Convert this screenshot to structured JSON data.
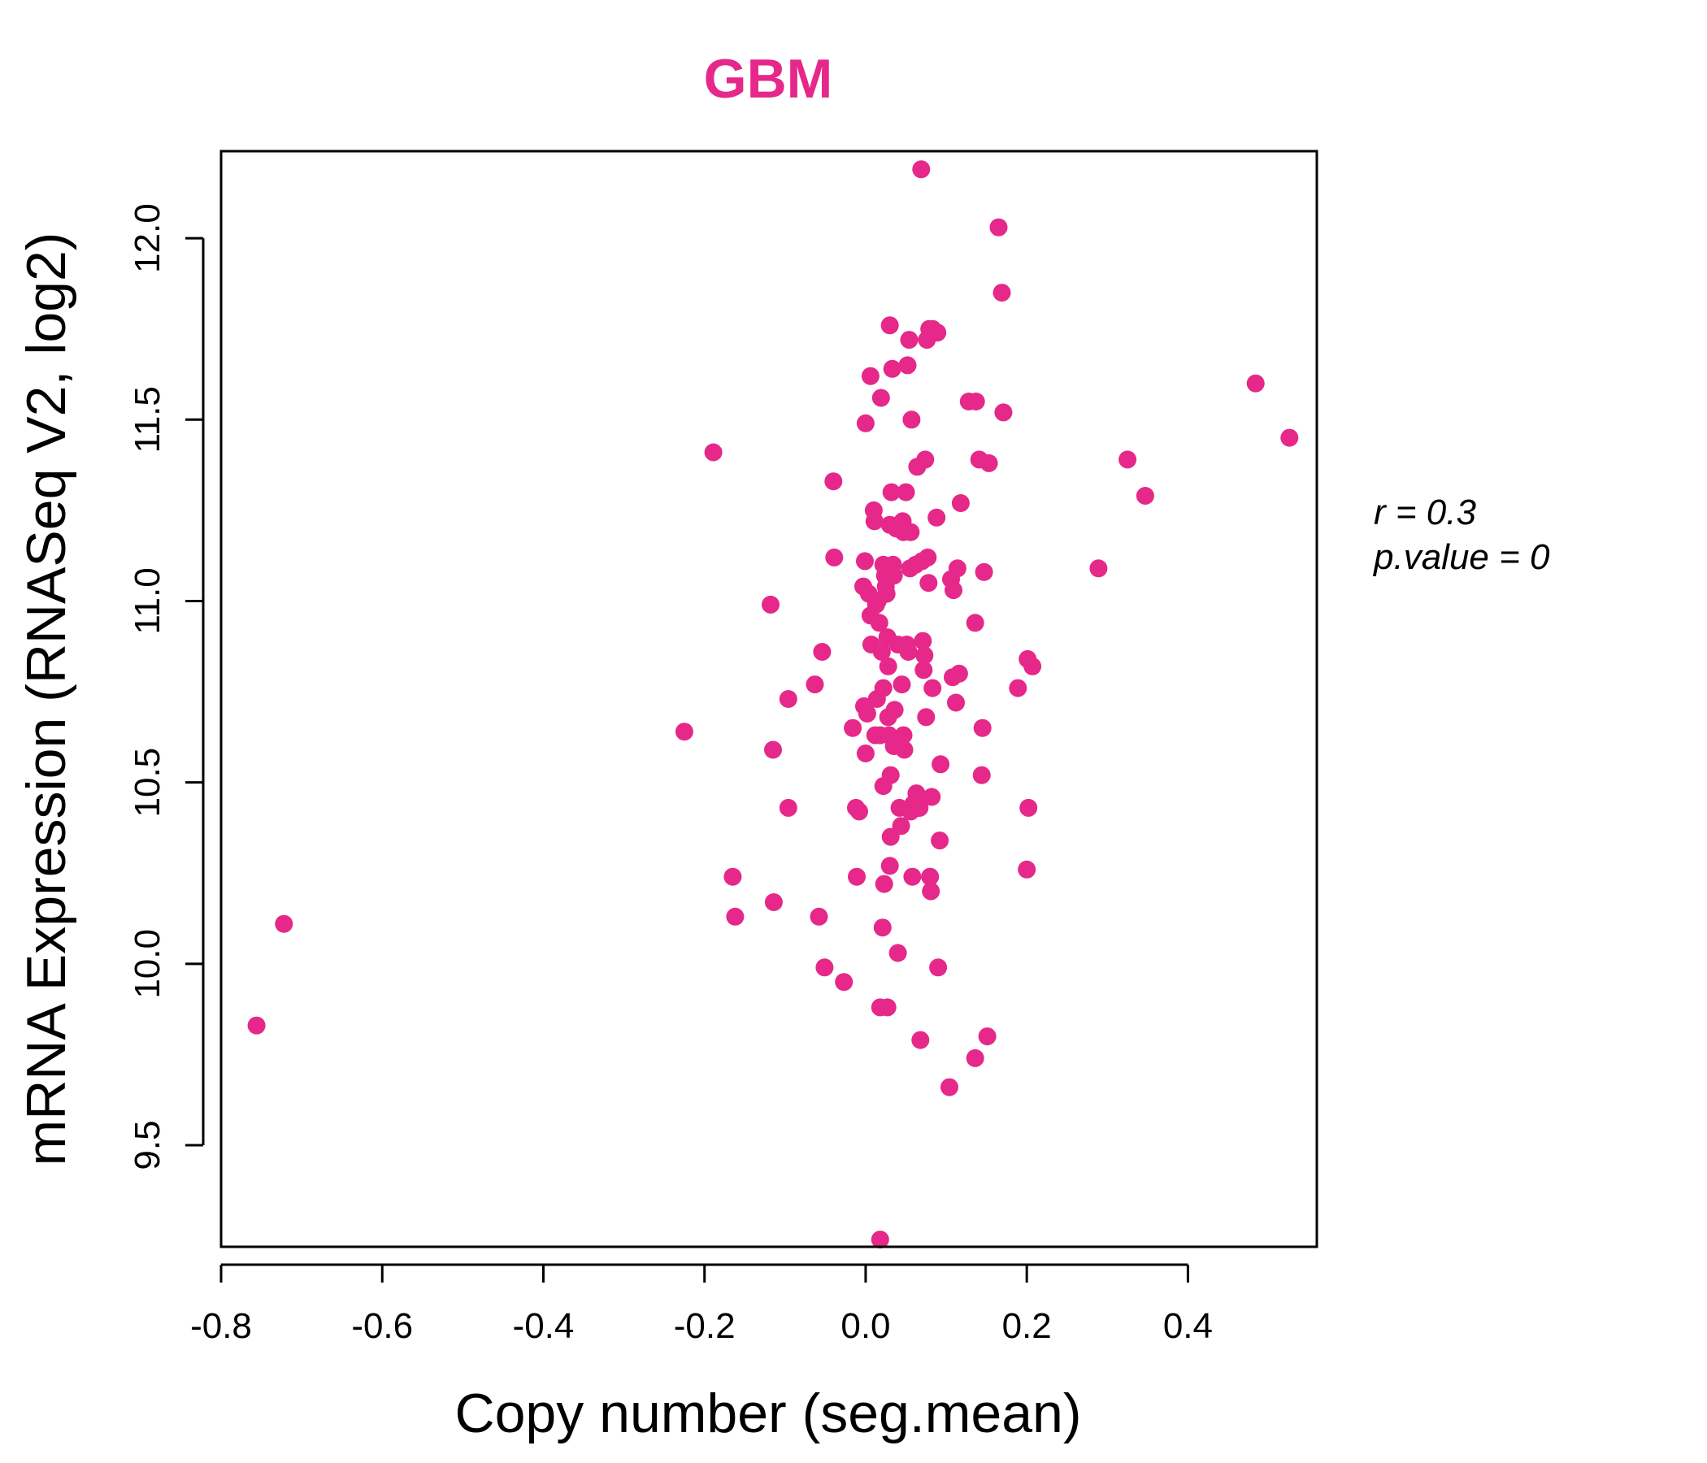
{
  "colors": {
    "points": "#e5288a",
    "title": "#e5288a",
    "axis": "#000000"
  },
  "chart_data": {
    "type": "scatter",
    "title": "GBM",
    "xlabel": "Copy number (seg.mean)",
    "ylabel": "mRNA Expression (RNASeq V2, log2)",
    "xlim": [
      -0.8,
      0.56
    ],
    "ylim": [
      9.22,
      12.24
    ],
    "xticks": [
      -0.8,
      -0.6,
      -0.4,
      -0.2,
      0.0,
      0.2,
      0.4
    ],
    "xtick_labels": [
      "-0.8",
      "-0.6",
      "-0.4",
      "-0.2",
      "0.0",
      "0.2",
      "0.4"
    ],
    "yticks": [
      9.5,
      10.0,
      10.5,
      11.0,
      11.5,
      12.0
    ],
    "ytick_labels": [
      "9.5",
      "10.0",
      "10.5",
      "11.0",
      "11.5",
      "12.0"
    ],
    "annotations": {
      "r": "r = 0.3",
      "p": "p.value = 0"
    },
    "points": [
      [
        -0.756,
        9.83
      ],
      [
        -0.722,
        10.11
      ],
      [
        -0.225,
        10.64
      ],
      [
        -0.189,
        11.41
      ],
      [
        -0.165,
        10.24
      ],
      [
        -0.162,
        10.13
      ],
      [
        -0.118,
        10.99
      ],
      [
        -0.115,
        10.59
      ],
      [
        -0.114,
        10.17
      ],
      [
        -0.096,
        10.73
      ],
      [
        -0.096,
        10.43
      ],
      [
        -0.063,
        10.77
      ],
      [
        -0.058,
        10.13
      ],
      [
        -0.054,
        10.86
      ],
      [
        -0.051,
        9.99
      ],
      [
        -0.04,
        11.33
      ],
      [
        -0.039,
        11.12
      ],
      [
        -0.027,
        9.95
      ],
      [
        -0.016,
        10.65
      ],
      [
        -0.012,
        10.43
      ],
      [
        -0.011,
        10.24
      ],
      [
        -0.008,
        10.42
      ],
      [
        -0.003,
        11.04
      ],
      [
        -0.002,
        10.71
      ],
      [
        -0.001,
        11.11
      ],
      [
        0.0,
        11.49
      ],
      [
        0.0,
        10.58
      ],
      [
        0.002,
        10.69
      ],
      [
        0.004,
        11.02
      ],
      [
        0.006,
        11.62
      ],
      [
        0.006,
        10.96
      ],
      [
        0.007,
        10.88
      ],
      [
        0.01,
        11.25
      ],
      [
        0.011,
        11.22
      ],
      [
        0.012,
        10.63
      ],
      [
        0.013,
        10.99
      ],
      [
        0.014,
        10.73
      ],
      [
        0.015,
        11.0
      ],
      [
        0.017,
        10.94
      ],
      [
        0.018,
        10.63
      ],
      [
        0.018,
        9.88
      ],
      [
        0.018,
        9.24
      ],
      [
        0.019,
        11.56
      ],
      [
        0.02,
        10.86
      ],
      [
        0.021,
        10.1
      ],
      [
        0.022,
        10.76
      ],
      [
        0.022,
        10.49
      ],
      [
        0.022,
        11.1
      ],
      [
        0.023,
        10.22
      ],
      [
        0.024,
        11.07
      ],
      [
        0.025,
        11.04
      ],
      [
        0.026,
        11.02
      ],
      [
        0.027,
        10.9
      ],
      [
        0.027,
        9.88
      ],
      [
        0.028,
        10.82
      ],
      [
        0.028,
        10.68
      ],
      [
        0.029,
        10.63
      ],
      [
        0.03,
        11.21
      ],
      [
        0.03,
        10.27
      ],
      [
        0.03,
        11.76
      ],
      [
        0.031,
        10.35
      ],
      [
        0.031,
        10.52
      ],
      [
        0.032,
        11.3
      ],
      [
        0.033,
        11.64
      ],
      [
        0.034,
        11.1
      ],
      [
        0.035,
        10.6
      ],
      [
        0.035,
        11.07
      ],
      [
        0.036,
        10.7
      ],
      [
        0.038,
        11.2
      ],
      [
        0.04,
        10.88
      ],
      [
        0.04,
        10.03
      ],
      [
        0.042,
        10.43
      ],
      [
        0.044,
        10.38
      ],
      [
        0.045,
        10.77
      ],
      [
        0.046,
        11.22
      ],
      [
        0.047,
        11.19
      ],
      [
        0.047,
        10.63
      ],
      [
        0.048,
        10.59
      ],
      [
        0.05,
        11.3
      ],
      [
        0.051,
        10.88
      ],
      [
        0.052,
        11.65
      ],
      [
        0.053,
        10.86
      ],
      [
        0.054,
        11.72
      ],
      [
        0.055,
        11.09
      ],
      [
        0.056,
        10.42
      ],
      [
        0.056,
        11.19
      ],
      [
        0.057,
        11.5
      ],
      [
        0.058,
        10.24
      ],
      [
        0.059,
        10.44
      ],
      [
        0.062,
        11.1
      ],
      [
        0.063,
        10.47
      ],
      [
        0.064,
        11.37
      ],
      [
        0.065,
        10.43
      ],
      [
        0.067,
        10.43
      ],
      [
        0.068,
        9.79
      ],
      [
        0.069,
        12.19
      ],
      [
        0.07,
        11.11
      ],
      [
        0.071,
        10.89
      ],
      [
        0.072,
        10.81
      ],
      [
        0.073,
        10.85
      ],
      [
        0.074,
        11.39
      ],
      [
        0.075,
        10.68
      ],
      [
        0.076,
        11.72
      ],
      [
        0.077,
        11.12
      ],
      [
        0.078,
        11.05
      ],
      [
        0.079,
        11.75
      ],
      [
        0.08,
        10.24
      ],
      [
        0.081,
        10.2
      ],
      [
        0.082,
        10.46
      ],
      [
        0.083,
        11.75
      ],
      [
        0.083,
        10.76
      ],
      [
        0.088,
        11.23
      ],
      [
        0.089,
        11.74
      ],
      [
        0.09,
        9.99
      ],
      [
        0.092,
        10.34
      ],
      [
        0.093,
        10.55
      ],
      [
        0.104,
        9.66
      ],
      [
        0.106,
        11.06
      ],
      [
        0.108,
        10.79
      ],
      [
        0.109,
        11.03
      ],
      [
        0.112,
        10.72
      ],
      [
        0.114,
        11.09
      ],
      [
        0.116,
        10.8
      ],
      [
        0.118,
        11.27
      ],
      [
        0.128,
        11.55
      ],
      [
        0.136,
        9.74
      ],
      [
        0.136,
        10.94
      ],
      [
        0.137,
        11.55
      ],
      [
        0.141,
        11.39
      ],
      [
        0.144,
        10.52
      ],
      [
        0.145,
        10.65
      ],
      [
        0.147,
        11.08
      ],
      [
        0.151,
        9.8
      ],
      [
        0.153,
        11.38
      ],
      [
        0.165,
        12.03
      ],
      [
        0.169,
        11.85
      ],
      [
        0.171,
        11.52
      ],
      [
        0.189,
        10.76
      ],
      [
        0.2,
        10.26
      ],
      [
        0.201,
        10.84
      ],
      [
        0.202,
        10.43
      ],
      [
        0.207,
        10.82
      ],
      [
        0.289,
        11.09
      ],
      [
        0.325,
        11.39
      ],
      [
        0.347,
        11.29
      ],
      [
        0.484,
        11.6
      ],
      [
        0.526,
        11.45
      ]
    ]
  }
}
